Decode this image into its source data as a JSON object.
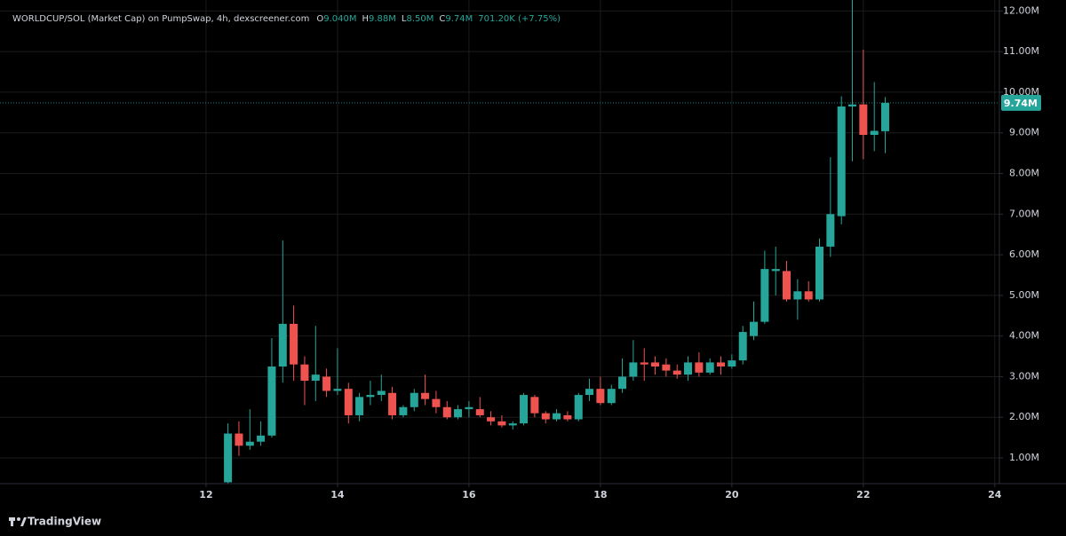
{
  "chart_data": {
    "type": "candlestick",
    "title": "WORLDCUP/SOL (Market Cap) on PumpSwap, 4h, dexscreener.com",
    "ohlc_header": [
      {
        "key": "O",
        "value": "9.040M"
      },
      {
        "key": "H",
        "value": "9.88M"
      },
      {
        "key": "L",
        "value": "8.50M"
      },
      {
        "key": "C",
        "value": "9.74M"
      }
    ],
    "change": "701.20K (+7.75%)",
    "x": [
      12.333,
      12.5,
      12.667,
      12.833,
      13.0,
      13.167,
      13.333,
      13.5,
      13.667,
      13.833,
      14.0,
      14.167,
      14.333,
      14.5,
      14.667,
      14.833,
      15.0,
      15.167,
      15.333,
      15.5,
      15.667,
      15.833,
      16.0,
      16.167,
      16.333,
      16.5,
      16.667,
      16.833,
      17.0,
      17.167,
      17.333,
      17.5,
      17.667,
      17.833,
      18.0,
      18.167,
      18.333,
      18.5,
      18.667,
      18.833,
      19.0,
      19.167,
      19.333,
      19.5,
      19.667,
      19.833,
      20.0,
      20.167,
      20.333,
      20.5,
      20.667,
      20.833,
      21.0,
      21.167,
      21.333,
      21.5,
      21.667,
      21.833,
      22.0,
      22.167,
      22.333
    ],
    "open": [
      0.4,
      1.6,
      1.3,
      1.4,
      1.55,
      3.25,
      4.3,
      3.3,
      2.9,
      3.0,
      2.65,
      2.7,
      2.05,
      2.5,
      2.55,
      2.6,
      2.05,
      2.25,
      2.6,
      2.45,
      2.25,
      2.0,
      2.2,
      2.2,
      2.0,
      1.9,
      1.8,
      1.85,
      2.5,
      2.1,
      1.95,
      2.05,
      1.95,
      2.55,
      2.7,
      2.35,
      2.7,
      3.0,
      3.35,
      3.35,
      3.3,
      3.15,
      3.05,
      3.35,
      3.1,
      3.35,
      3.25,
      3.4,
      4.0,
      4.35,
      5.6,
      5.6,
      4.9,
      5.1,
      4.9,
      6.2,
      6.95,
      9.65,
      9.7,
      8.95,
      9.04
    ],
    "high": [
      1.85,
      1.9,
      2.2,
      1.9,
      3.95,
      6.35,
      4.75,
      3.5,
      4.25,
      3.2,
      3.7,
      2.85,
      2.6,
      2.9,
      3.05,
      2.75,
      2.3,
      2.7,
      3.05,
      2.65,
      2.4,
      2.3,
      2.4,
      2.5,
      2.15,
      2.05,
      1.9,
      2.6,
      2.55,
      2.15,
      2.2,
      2.15,
      2.6,
      2.95,
      3.0,
      2.8,
      3.45,
      3.9,
      3.7,
      3.5,
      3.45,
      3.3,
      3.5,
      3.6,
      3.45,
      3.5,
      3.55,
      4.25,
      4.85,
      6.1,
      6.2,
      5.85,
      5.4,
      5.35,
      6.4,
      8.4,
      9.9,
      12.3,
      11.05,
      10.25,
      9.88
    ],
    "low": [
      0.37,
      1.05,
      1.2,
      1.3,
      1.5,
      2.85,
      2.9,
      2.3,
      2.4,
      2.5,
      2.55,
      1.85,
      1.9,
      2.3,
      2.4,
      1.95,
      2.0,
      2.15,
      2.3,
      2.1,
      1.95,
      1.95,
      2.0,
      2.0,
      1.8,
      1.75,
      1.7,
      1.8,
      2.0,
      1.85,
      1.9,
      1.9,
      1.9,
      2.4,
      2.3,
      2.3,
      2.6,
      2.9,
      2.9,
      3.05,
      3.0,
      2.95,
      2.9,
      3.0,
      3.05,
      3.05,
      3.2,
      3.3,
      3.9,
      4.3,
      5.0,
      4.85,
      4.4,
      4.85,
      4.85,
      5.95,
      6.75,
      8.3,
      8.35,
      8.55,
      8.5
    ],
    "close": [
      1.6,
      1.3,
      1.4,
      1.55,
      3.25,
      4.3,
      3.3,
      2.9,
      3.05,
      2.65,
      2.7,
      2.05,
      2.5,
      2.55,
      2.65,
      2.05,
      2.25,
      2.6,
      2.45,
      2.25,
      2.0,
      2.2,
      2.25,
      2.05,
      1.9,
      1.8,
      1.85,
      2.55,
      2.1,
      1.95,
      2.1,
      1.95,
      2.55,
      2.7,
      2.35,
      2.7,
      3.0,
      3.35,
      3.3,
      3.25,
      3.15,
      3.05,
      3.35,
      3.1,
      3.35,
      3.25,
      3.4,
      4.1,
      4.35,
      5.65,
      5.65,
      4.9,
      5.1,
      4.9,
      6.2,
      7.0,
      9.65,
      9.7,
      8.95,
      9.05,
      9.74
    ],
    "up_color": "#26a69a",
    "down_color": "#ef5350",
    "last_price": {
      "value": 9.74,
      "label": "9.74M"
    },
    "xlim": [
      8.865,
      24.07
    ],
    "xticks": [
      12,
      14,
      16,
      18,
      20,
      22,
      24
    ],
    "ylim": [
      0.367,
      12.27
    ],
    "yticks": [
      {
        "value": 1,
        "label": "1.00M"
      },
      {
        "value": 2,
        "label": "2.00M"
      },
      {
        "value": 3,
        "label": "3.00M"
      },
      {
        "value": 4,
        "label": "4.00M"
      },
      {
        "value": 5,
        "label": "5.00M"
      },
      {
        "value": 6,
        "label": "6.00M"
      },
      {
        "value": 7,
        "label": "7.00M"
      },
      {
        "value": 8,
        "label": "8.00M"
      },
      {
        "value": 9,
        "label": "9.00M"
      },
      {
        "value": 10,
        "label": "10.00M"
      },
      {
        "value": 11,
        "label": "11.00M"
      },
      {
        "value": 12,
        "label": "12.00M"
      }
    ],
    "grid": true,
    "watermark": "TradingView"
  }
}
